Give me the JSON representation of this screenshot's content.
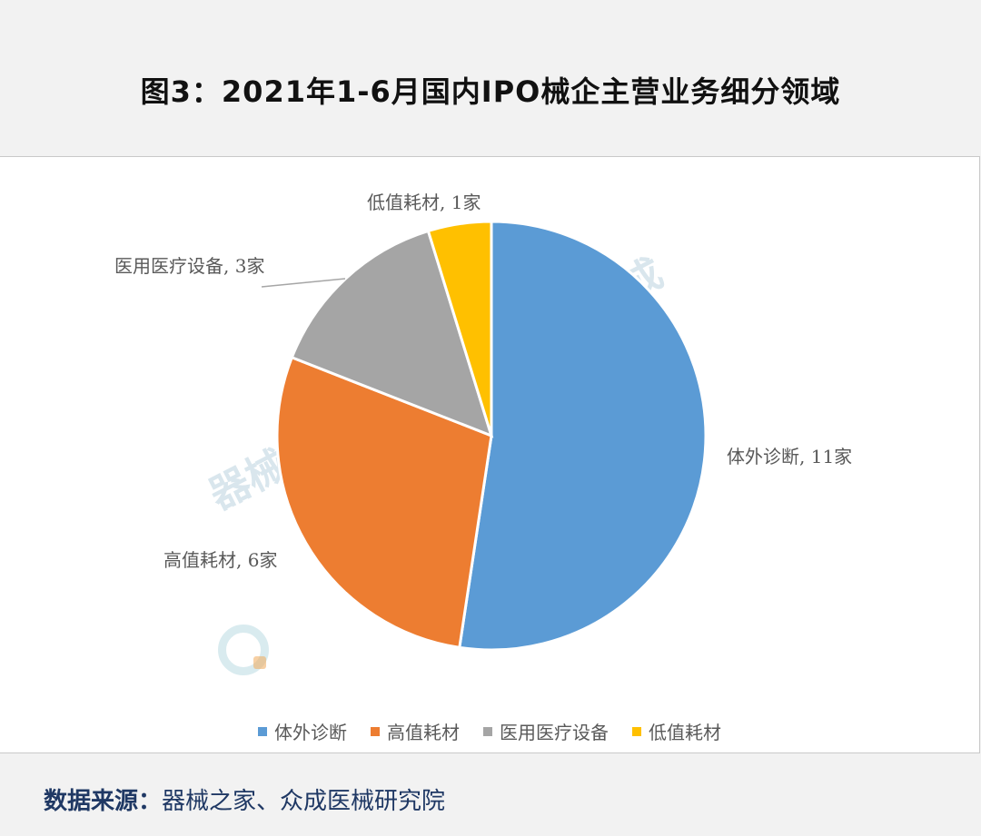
{
  "header": {
    "title": "图3：2021年1-6月国内IPO械企主营业务细分领域"
  },
  "chart_data": {
    "type": "pie",
    "categories": [
      "体外诊断",
      "高值耗材",
      "医用医疗设备",
      "低值耗材"
    ],
    "values": [
      11,
      6,
      3,
      1
    ],
    "unit": "家",
    "data_labels": [
      "体外诊断, 11家",
      "高值耗材, 6家",
      "医用医疗设备, 3家",
      "低值耗材, 1家"
    ],
    "colors": [
      "#5b9bd5",
      "#ed7d31",
      "#a5a5a5",
      "#ffc000"
    ],
    "legend": [
      "体外诊断",
      "高值耗材",
      "医用医疗设备",
      "低值耗材"
    ],
    "legend_position": "bottom"
  },
  "watermark": {
    "text": "器械之家 | Joinchain 众成"
  },
  "footer": {
    "source_label": "数据来源：",
    "source_text": "器械之家、众成医械研究院"
  }
}
